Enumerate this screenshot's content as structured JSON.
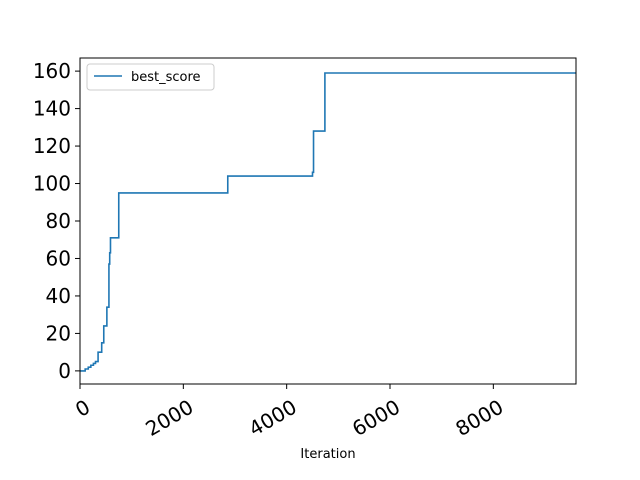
{
  "chart_data": {
    "type": "line",
    "title": "",
    "xlabel": "Iteration",
    "ylabel": "",
    "xlim": [
      0,
      9600
    ],
    "ylim": [
      -7,
      167
    ],
    "xticks": [
      0,
      2000,
      4000,
      6000,
      8000
    ],
    "xtick_labels": [
      "0",
      "2000",
      "4000",
      "6000",
      "8000"
    ],
    "yticks": [
      0,
      20,
      40,
      60,
      80,
      100,
      120,
      140,
      160
    ],
    "ytick_labels": [
      "0",
      "20",
      "40",
      "60",
      "80",
      "100",
      "120",
      "140",
      "160"
    ],
    "grid": false,
    "legend": {
      "position": "top-left",
      "entries": [
        "best_score"
      ]
    },
    "series": [
      {
        "name": "best_score",
        "color": "#1f77b4",
        "step": "post",
        "x": [
          0,
          100,
          160,
          210,
          260,
          300,
          350,
          420,
          460,
          520,
          560,
          575,
          590,
          620,
          700,
          750,
          2850,
          2860,
          4480,
          4500,
          4520,
          4720,
          4740,
          9600
        ],
        "y": [
          0,
          1,
          2,
          3,
          4,
          5,
          10,
          15,
          24,
          34,
          57,
          63,
          71,
          71,
          71,
          95,
          95,
          104,
          104,
          106,
          128,
          128,
          159,
          159
        ]
      }
    ]
  }
}
